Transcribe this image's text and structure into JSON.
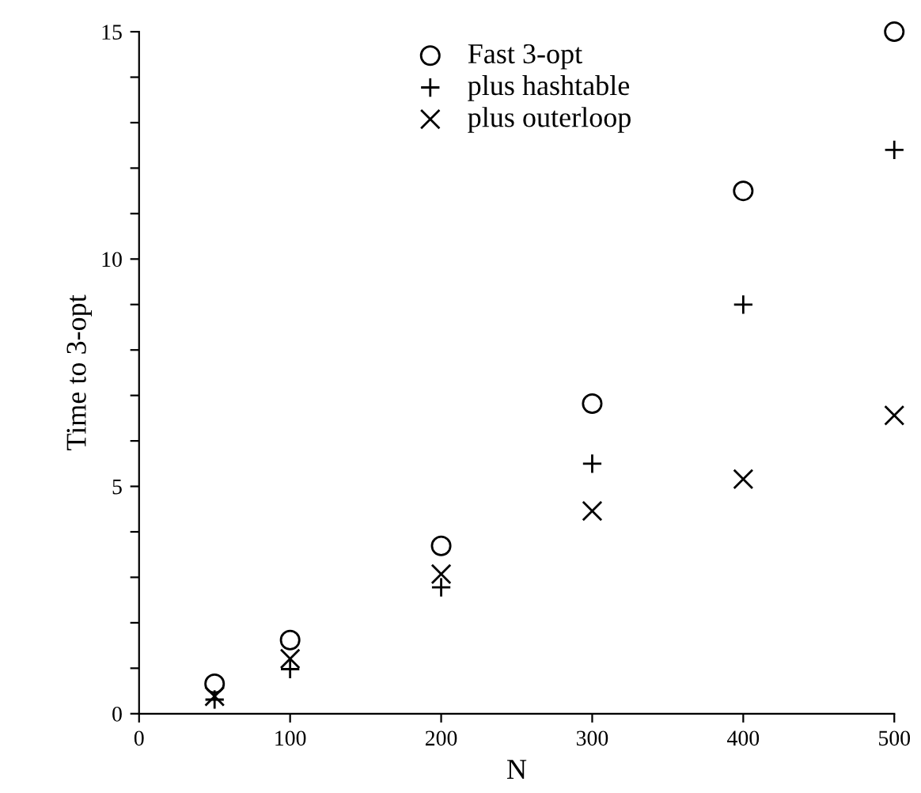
{
  "chart_data": {
    "type": "scatter",
    "xlabel": "N",
    "ylabel": "Time to 3-opt",
    "x": [
      50,
      100,
      200,
      300,
      400,
      500
    ],
    "series": [
      {
        "name": "Fast 3-opt",
        "color": "#000000",
        "marker": "circle",
        "values": [
          0.66,
          1.62,
          3.69,
          6.82,
          11.5,
          15.0
        ]
      },
      {
        "name": "plus hashtable",
        "color": "#000000",
        "marker": "plus",
        "values": [
          0.31,
          0.98,
          2.78,
          5.5,
          9.0,
          12.4
        ]
      },
      {
        "name": "plus outerloop",
        "color": "#000000",
        "marker": "cross",
        "values": [
          0.38,
          1.21,
          3.07,
          4.46,
          5.16,
          6.56
        ]
      }
    ],
    "xlim": [
      0,
      500
    ],
    "xticks": [
      0,
      100,
      200,
      300,
      400,
      500
    ],
    "ylim": [
      0,
      15
    ],
    "yticks": [
      0,
      {
        "value": 1,
        "label": null
      },
      {
        "value": 2,
        "label": null
      },
      {
        "value": 3,
        "label": null
      },
      {
        "value": 4,
        "label": null
      },
      5,
      {
        "value": 6,
        "label": null
      },
      {
        "value": 7,
        "label": null
      },
      {
        "value": 8,
        "label": null
      },
      {
        "value": 9,
        "label": null
      },
      10,
      {
        "value": 11,
        "label": null
      },
      {
        "value": 12,
        "label": null
      },
      {
        "value": 13,
        "label": null
      },
      {
        "value": 14,
        "label": null
      },
      15
    ],
    "grid": false,
    "legend": "top"
  }
}
